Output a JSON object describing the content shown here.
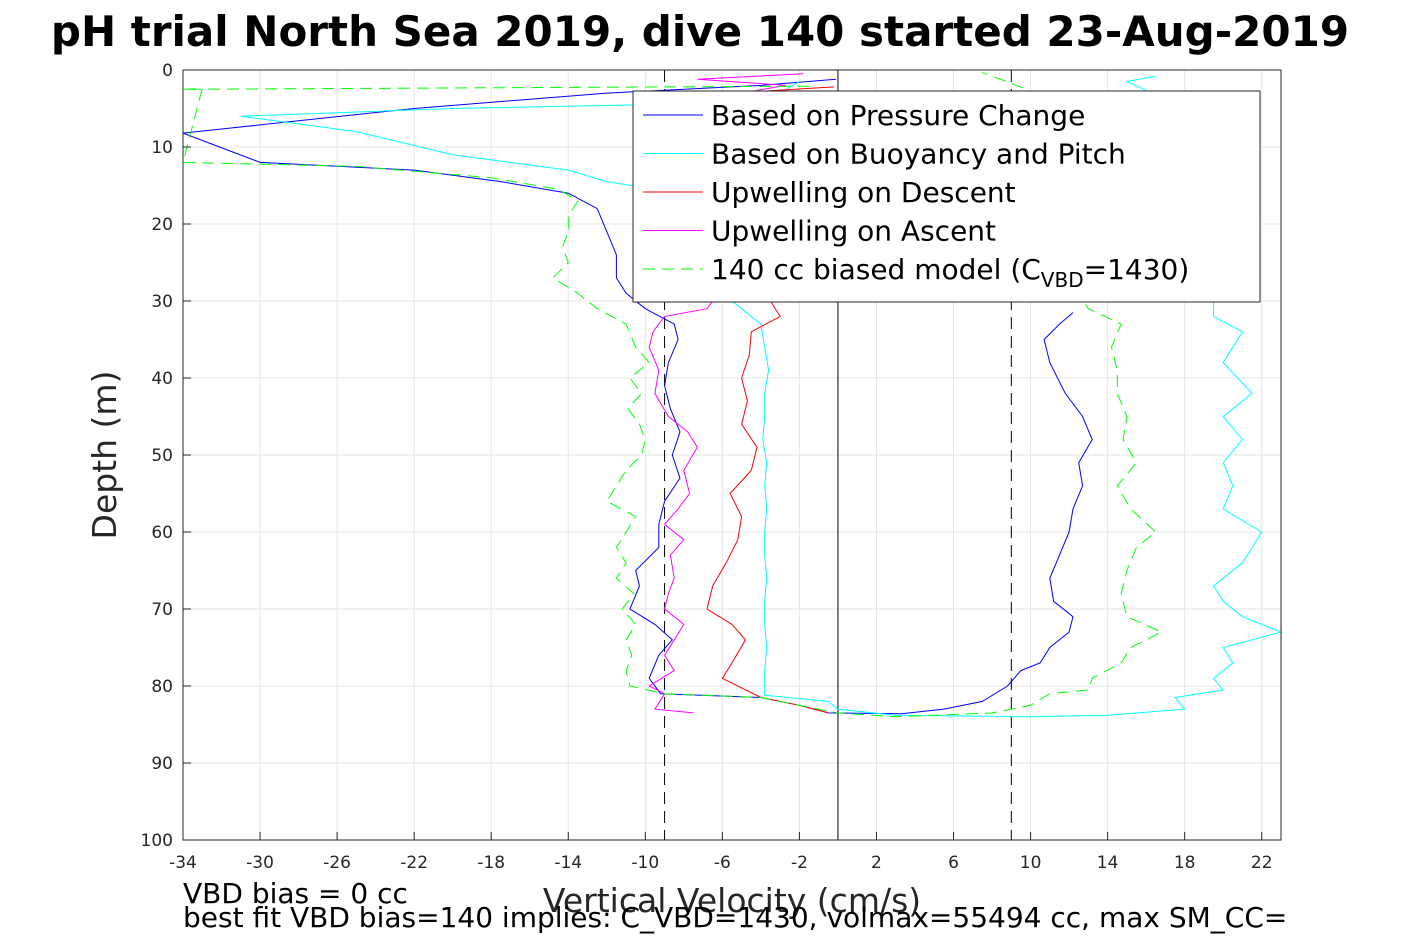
{
  "chart_data": {
    "type": "line",
    "title": "pH trial North Sea 2019, dive 140 started 23-Aug-2019 ",
    "xlabel": "Vertical Velocity (cm/s)",
    "ylabel": "Depth (m)",
    "xlim": [
      -34,
      23
    ],
    "ylim": [
      0,
      100
    ],
    "y_reversed": true,
    "grid": true,
    "legend_position": "top-right",
    "x_ticks": [
      -34,
      -30,
      -26,
      -22,
      -18,
      -14,
      -10,
      -6,
      -2,
      2,
      6,
      10,
      14,
      18,
      22
    ],
    "y_ticks": [
      0,
      10,
      20,
      30,
      40,
      50,
      60,
      70,
      80,
      90,
      100
    ],
    "reference_lines": [
      {
        "type": "vertical",
        "x": 0,
        "style": "solid",
        "color": "#000000"
      },
      {
        "type": "vertical",
        "x": -9,
        "style": "dashed",
        "color": "#000000"
      },
      {
        "type": "vertical",
        "x": 9,
        "style": "dashed",
        "color": "#000000"
      }
    ],
    "series": [
      {
        "name": "Based on Pressure Change",
        "color": "#0000ff",
        "style": "solid",
        "points": [
          [
            -0.1,
            1.2
          ],
          [
            -4,
            2
          ],
          [
            -12,
            3
          ],
          [
            -22,
            5
          ],
          [
            -34,
            8.2
          ],
          [
            -30,
            12
          ],
          [
            -22,
            13
          ],
          [
            -17.5,
            14.5
          ],
          [
            -14,
            16
          ],
          [
            -12.5,
            18
          ],
          [
            -12,
            21
          ],
          [
            -11.5,
            24
          ],
          [
            -11.5,
            27
          ],
          [
            -11,
            29
          ],
          [
            -10,
            31
          ],
          [
            -8.5,
            33
          ],
          [
            -8.3,
            35
          ],
          [
            -8.8,
            38
          ],
          [
            -9,
            41
          ],
          [
            -8.7,
            44
          ],
          [
            -8.2,
            47
          ],
          [
            -8.6,
            50
          ],
          [
            -8.2,
            53
          ],
          [
            -9,
            56
          ],
          [
            -9.3,
            59
          ],
          [
            -9.3,
            62
          ],
          [
            -10.5,
            65
          ],
          [
            -10.3,
            67
          ],
          [
            -10.8,
            70
          ],
          [
            -9.5,
            72
          ],
          [
            -8.6,
            74
          ],
          [
            -9.3,
            76
          ],
          [
            -9.8,
            79
          ],
          [
            -9.2,
            81
          ],
          [
            -4,
            81.5
          ],
          [
            -2,
            82.5
          ],
          [
            -0.5,
            83.5
          ],
          [
            3.3,
            83.6
          ],
          [
            5.5,
            83
          ],
          [
            7.5,
            82
          ],
          [
            8.8,
            80
          ],
          [
            9.5,
            78
          ],
          [
            10.5,
            77
          ],
          [
            11,
            75
          ],
          [
            12,
            73
          ],
          [
            12.2,
            71
          ],
          [
            11.2,
            69
          ],
          [
            11,
            66
          ],
          [
            11.5,
            63
          ],
          [
            12,
            60
          ],
          [
            12.2,
            57
          ],
          [
            12.7,
            54
          ],
          [
            12.5,
            51
          ],
          [
            13.2,
            48
          ],
          [
            12.7,
            45
          ],
          [
            11.8,
            42
          ],
          [
            11,
            38
          ],
          [
            10.7,
            35
          ],
          [
            11.5,
            33
          ],
          [
            12.2,
            31.5
          ]
        ]
      },
      {
        "name": "Based on Buoyancy and Pitch",
        "color": "#00ffff",
        "style": "solid",
        "points": [
          [
            -2,
            1.5
          ],
          [
            -3,
            3
          ],
          [
            -10,
            4.5
          ],
          [
            -20,
            5
          ],
          [
            -31,
            6
          ],
          [
            -25,
            8
          ],
          [
            -20,
            11
          ],
          [
            -14,
            13
          ],
          [
            -12,
            14.5
          ],
          [
            -9.5,
            15.5
          ],
          [
            -8,
            18
          ],
          [
            -7,
            22
          ],
          [
            -6.2,
            26
          ],
          [
            -6,
            29
          ],
          [
            -5,
            31
          ],
          [
            -4,
            33
          ],
          [
            -3.8,
            36
          ],
          [
            -3.6,
            39
          ],
          [
            -3.8,
            42
          ],
          [
            -3.8,
            45
          ],
          [
            -3.9,
            48
          ],
          [
            -3.7,
            51
          ],
          [
            -3.8,
            54
          ],
          [
            -3.7,
            57
          ],
          [
            -3.8,
            60
          ],
          [
            -3.8,
            63
          ],
          [
            -3.7,
            66
          ],
          [
            -3.8,
            69
          ],
          [
            -3.8,
            72
          ],
          [
            -3.7,
            75
          ],
          [
            -3.8,
            78
          ],
          [
            -3.8,
            81.2
          ],
          [
            -0.5,
            82
          ],
          [
            0,
            83
          ],
          [
            3,
            83.8
          ],
          [
            10,
            84
          ],
          [
            14,
            83.8
          ],
          [
            18,
            83
          ],
          [
            17.5,
            81.5
          ],
          [
            20,
            80.5
          ],
          [
            19.5,
            79
          ],
          [
            20.5,
            77
          ],
          [
            20,
            75
          ],
          [
            23,
            73
          ],
          [
            21,
            71
          ],
          [
            20,
            69
          ],
          [
            19.5,
            67
          ],
          [
            21,
            64
          ],
          [
            22,
            60
          ],
          [
            20,
            57
          ],
          [
            20.5,
            54
          ],
          [
            20,
            51
          ],
          [
            21,
            48
          ],
          [
            20,
            45
          ],
          [
            21.5,
            42
          ],
          [
            20,
            38
          ],
          [
            21,
            34
          ],
          [
            19.5,
            32
          ],
          [
            19.5,
            30
          ],
          [
            19,
            28
          ],
          [
            18.5,
            26
          ],
          [
            18,
            24
          ],
          [
            17.5,
            22
          ],
          [
            17,
            20
          ],
          [
            16.5,
            18
          ],
          [
            16,
            16
          ],
          [
            15.5,
            14
          ],
          [
            15,
            12
          ],
          [
            15,
            10
          ],
          [
            15.5,
            8
          ],
          [
            16,
            6
          ],
          [
            16.3,
            3
          ],
          [
            15,
            1.5
          ],
          [
            16.5,
            0.8
          ]
        ]
      },
      {
        "name": "Upwelling on Descent",
        "color": "#ff0000",
        "style": "solid",
        "points": [
          [
            -0.2,
            2.2
          ],
          [
            -9,
            3.5
          ],
          [
            -2.5,
            4
          ],
          [
            -3.5,
            30
          ],
          [
            -3,
            32
          ],
          [
            -4.5,
            34
          ],
          [
            -4.6,
            37
          ],
          [
            -5,
            40
          ],
          [
            -4.7,
            43
          ],
          [
            -5,
            46
          ],
          [
            -4.2,
            49
          ],
          [
            -4.5,
            52
          ],
          [
            -5.6,
            55
          ],
          [
            -5,
            58
          ],
          [
            -5.2,
            61
          ],
          [
            -5.8,
            64
          ],
          [
            -6.5,
            67
          ],
          [
            -6.8,
            70
          ],
          [
            -5.5,
            72
          ],
          [
            -4.8,
            74
          ],
          [
            -5.5,
            77
          ],
          [
            -6,
            79
          ],
          [
            -4,
            81.5
          ],
          [
            -2,
            82.5
          ],
          [
            -0.5,
            83.5
          ]
        ]
      },
      {
        "name": "Upwelling on Ascent",
        "color": "#ff00ff",
        "style": "solid",
        "points": [
          [
            -7.5,
            83.5
          ],
          [
            -9.5,
            83
          ],
          [
            -9,
            81
          ],
          [
            -9.8,
            80
          ],
          [
            -8.5,
            78
          ],
          [
            -9,
            76
          ],
          [
            -8.5,
            74
          ],
          [
            -8,
            72
          ],
          [
            -9,
            70
          ],
          [
            -8.8,
            68
          ],
          [
            -8.5,
            66
          ],
          [
            -8.7,
            63
          ],
          [
            -8,
            61
          ],
          [
            -9,
            59
          ],
          [
            -8.3,
            57
          ],
          [
            -7.7,
            55
          ],
          [
            -8,
            52
          ],
          [
            -7.3,
            49
          ],
          [
            -7.8,
            47
          ],
          [
            -8.8,
            45
          ],
          [
            -9.5,
            42
          ],
          [
            -9.3,
            39
          ],
          [
            -9.8,
            36
          ],
          [
            -9.6,
            34
          ],
          [
            -9,
            32
          ],
          [
            -6.8,
            31
          ],
          [
            -6.5,
            30
          ],
          [
            -6.2,
            29
          ],
          [
            -7.5,
            26
          ],
          [
            -7.8,
            23
          ],
          [
            -6.8,
            20
          ],
          [
            -7.5,
            18
          ],
          [
            -6.5,
            15
          ],
          [
            -6,
            10
          ],
          [
            -3.2,
            5
          ],
          [
            -5,
            3
          ],
          [
            -2.7,
            2
          ],
          [
            -7.3,
            1.2
          ],
          [
            -1.8,
            0.5
          ]
        ]
      },
      {
        "name": "140 cc biased model (C_VBD=1430)",
        "color": "#00ff00",
        "style": "dashed",
        "points": [
          [
            -1.5,
            2.1
          ],
          [
            -34,
            2.5
          ],
          [
            -33,
            2.4
          ],
          [
            -34,
            12
          ],
          [
            -25,
            12.5
          ],
          [
            -18,
            14
          ],
          [
            -14.5,
            15.5
          ],
          [
            -13.5,
            17
          ],
          [
            -14,
            19
          ],
          [
            -14,
            21
          ],
          [
            -14.3,
            23
          ],
          [
            -14,
            25
          ],
          [
            -14.8,
            27
          ],
          [
            -13.5,
            29
          ],
          [
            -12.5,
            31
          ],
          [
            -11,
            33
          ],
          [
            -10.5,
            36
          ],
          [
            -9.8,
            38
          ],
          [
            -10.8,
            40
          ],
          [
            -10.2,
            42
          ],
          [
            -10.9,
            44
          ],
          [
            -10.3,
            46
          ],
          [
            -10,
            48
          ],
          [
            -10.2,
            50
          ],
          [
            -11,
            52
          ],
          [
            -11.5,
            54
          ],
          [
            -12,
            56
          ],
          [
            -10.5,
            58
          ],
          [
            -11,
            60
          ],
          [
            -11.5,
            62
          ],
          [
            -11,
            64
          ],
          [
            -11.5,
            66
          ],
          [
            -10.6,
            68
          ],
          [
            -11.2,
            70
          ],
          [
            -10.5,
            72
          ],
          [
            -11,
            74
          ],
          [
            -10.7,
            76
          ],
          [
            -11,
            78
          ],
          [
            -10.8,
            80
          ],
          [
            -9,
            81
          ],
          [
            -4,
            81.5
          ],
          [
            -2,
            82.5
          ],
          [
            0,
            83.5
          ],
          [
            3,
            84
          ],
          [
            8,
            83.5
          ],
          [
            10,
            82.5
          ],
          [
            11,
            81
          ],
          [
            13,
            80.5
          ],
          [
            13.2,
            79
          ],
          [
            14.7,
            77
          ],
          [
            15.2,
            75
          ],
          [
            16.8,
            73
          ],
          [
            15,
            71
          ],
          [
            14.7,
            68
          ],
          [
            15,
            65
          ],
          [
            15.5,
            62
          ],
          [
            16.5,
            60
          ],
          [
            15.2,
            57
          ],
          [
            14.5,
            54
          ],
          [
            15.5,
            51
          ],
          [
            14.8,
            48
          ],
          [
            15,
            45
          ],
          [
            14.5,
            42
          ],
          [
            14.5,
            39
          ],
          [
            14.2,
            36
          ],
          [
            14.7,
            33
          ],
          [
            13,
            31
          ],
          [
            12.5,
            29
          ],
          [
            12.7,
            27
          ],
          [
            12.5,
            25
          ],
          [
            12,
            22
          ],
          [
            11.5,
            18
          ],
          [
            11,
            14
          ],
          [
            10.5,
            10
          ],
          [
            10.5,
            6
          ],
          [
            10.3,
            3
          ],
          [
            7.5,
            0.3
          ]
        ]
      }
    ],
    "annotations": [
      "VBD bias = 0 cc",
      "best fit VBD bias=140 implies: C_VBD=1430, volmax=55494 cc, max SM_CC="
    ]
  }
}
